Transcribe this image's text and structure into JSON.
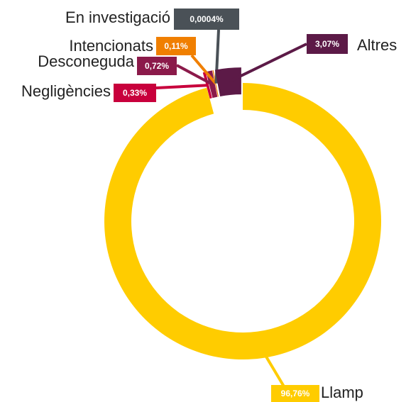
{
  "chart_data": {
    "type": "donut",
    "categories": [
      "Llamp",
      "Negligències",
      "Desconeguda",
      "Intencionats",
      "En investigació",
      "Altres"
    ],
    "values": [
      96.76,
      0.33,
      0.72,
      0.11,
      0.0004,
      3.07
    ],
    "value_labels": [
      "96,76%",
      "0,33%",
      "0,72%",
      "0,11%",
      "0,0004%",
      "3,07%"
    ],
    "colors": [
      "#ffcc00",
      "#c8003c",
      "#8b1a4a",
      "#f07f00",
      "#4a5157",
      "#5c1a47"
    ]
  }
}
